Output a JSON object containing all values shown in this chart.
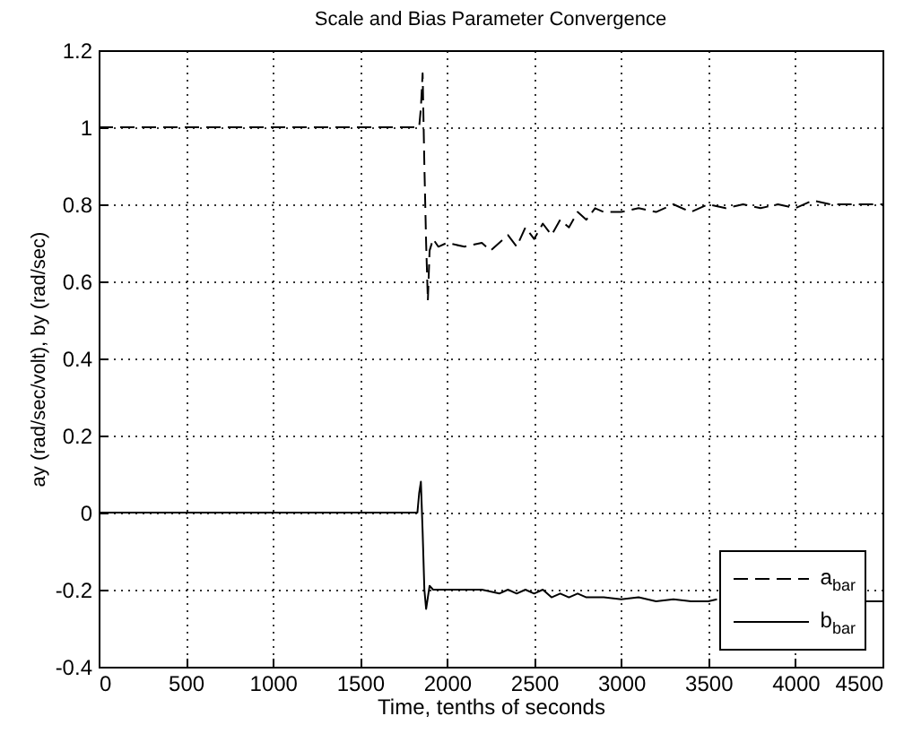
{
  "chart_data": {
    "type": "line",
    "title": "Scale and Bias Parameter Convergence",
    "xlabel": "Time, tenths of seconds",
    "ylabel": "ay (rad/sec/volt), by (rad/sec)",
    "xlim": [
      0,
      4500
    ],
    "xticks": [
      0,
      500,
      1000,
      1500,
      2000,
      2500,
      3000,
      3500,
      4000,
      4500
    ],
    "ylim": [
      -0.4,
      1.2
    ],
    "yticks": [
      -0.4,
      -0.2,
      0,
      0.2,
      0.4,
      0.6,
      0.8,
      1,
      1.2
    ],
    "grid": true,
    "legend": "bottom right",
    "series": [
      {
        "name": "a$_{bar}$",
        "color": "#000000",
        "line_style": "dashed",
        "x": [
          0,
          1840,
          1850,
          1860,
          1870,
          1880,
          1890,
          1900,
          1920,
          1950,
          2000,
          2100,
          2200,
          2250,
          2300,
          2350,
          2400,
          2450,
          2500,
          2550,
          2600,
          2650,
          2700,
          2750,
          2800,
          2850,
          2900,
          3000,
          3100,
          3200,
          3300,
          3400,
          3500,
          3600,
          3700,
          3800,
          3900,
          4000,
          4100,
          4200,
          4300,
          4400,
          4500
        ],
        "values": [
          1,
          1,
          1.05,
          1.14,
          0.9,
          0.7,
          0.55,
          0.68,
          0.71,
          0.69,
          0.7,
          0.69,
          0.7,
          0.68,
          0.7,
          0.72,
          0.69,
          0.74,
          0.71,
          0.75,
          0.72,
          0.76,
          0.74,
          0.78,
          0.76,
          0.79,
          0.78,
          0.78,
          0.79,
          0.78,
          0.8,
          0.78,
          0.8,
          0.79,
          0.8,
          0.79,
          0.8,
          0.79,
          0.81,
          0.8,
          0.8,
          0.8,
          0.8
        ]
      },
      {
        "name": "b$_{bar}$",
        "color": "#000000",
        "line_style": "solid",
        "x": [
          0,
          1830,
          1840,
          1850,
          1860,
          1870,
          1880,
          1890,
          1900,
          1920,
          1950,
          2000,
          2100,
          2200,
          2300,
          2350,
          2400,
          2450,
          2500,
          2550,
          2600,
          2650,
          2700,
          2750,
          2800,
          2900,
          3000,
          3100,
          3200,
          3300,
          3400,
          3500,
          3550,
          3600,
          4350,
          4400,
          4500
        ],
        "values": [
          0,
          0,
          0.05,
          0.08,
          -0.05,
          -0.2,
          -0.25,
          -0.22,
          -0.19,
          -0.2,
          -0.2,
          -0.2,
          -0.2,
          -0.2,
          -0.21,
          -0.2,
          -0.21,
          -0.2,
          -0.21,
          -0.2,
          -0.22,
          -0.21,
          -0.22,
          -0.21,
          -0.22,
          -0.22,
          -0.225,
          -0.22,
          -0.23,
          -0.225,
          -0.23,
          -0.23,
          -0.225,
          null,
          null,
          -0.23,
          -0.23
        ]
      }
    ]
  }
}
